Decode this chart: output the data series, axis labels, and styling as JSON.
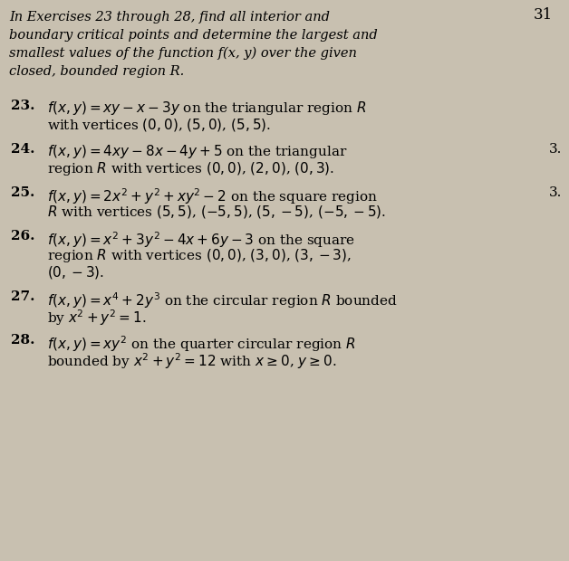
{
  "bg_color": "#c8c0b0",
  "page_number": "31",
  "intro_lines": [
    "In Exercises 23 through 28, find all interior and",
    "boundary critical points and determine the largest and",
    "smallest values of the function f(x, y) over the given",
    "closed, bounded region R."
  ],
  "problems": [
    {
      "num": "23.",
      "lines": [
        "$f(x, y) = xy - x - 3y$ on the triangular region $R$",
        "with vertices $(0, 0)$, $(5, 0)$, $(5, 5)$."
      ],
      "right": null
    },
    {
      "num": "24.",
      "lines": [
        "$f(x, y) = 4xy - 8x - 4y + 5$ on the triangular",
        "region $R$ with vertices $(0, 0)$, $(2, 0)$, $(0, 3)$."
      ],
      "right": "3."
    },
    {
      "num": "25.",
      "lines": [
        "$f(x, y) = 2x^2 + y^2 + xy^2 - 2$ on the square region",
        "$R$ with vertices $(5, 5)$, $(-5, 5)$, $(5, -5)$, $(-5, -5)$."
      ],
      "right": "3."
    },
    {
      "num": "26.",
      "lines": [
        "$f(x, y) = x^2 + 3y^2 - 4x + 6y - 3$ on the square",
        "region $R$ with vertices $(0, 0)$, $(3, 0)$, $(3, -3)$,",
        "$(0, -3)$."
      ],
      "right": null
    },
    {
      "num": "27.",
      "lines": [
        "$f(x, y) = x^4 + 2y^3$ on the circular region $R$ bounded",
        "by $x^2 + y^2 = 1$."
      ],
      "right": null
    },
    {
      "num": "28.",
      "lines": [
        "$f(x, y) = xy^2$ on the quarter circular region $R$",
        "bounded by $x^2 + y^2 = 12$ with $x \\geq 0$, $y \\geq 0$."
      ],
      "right": null
    }
  ]
}
